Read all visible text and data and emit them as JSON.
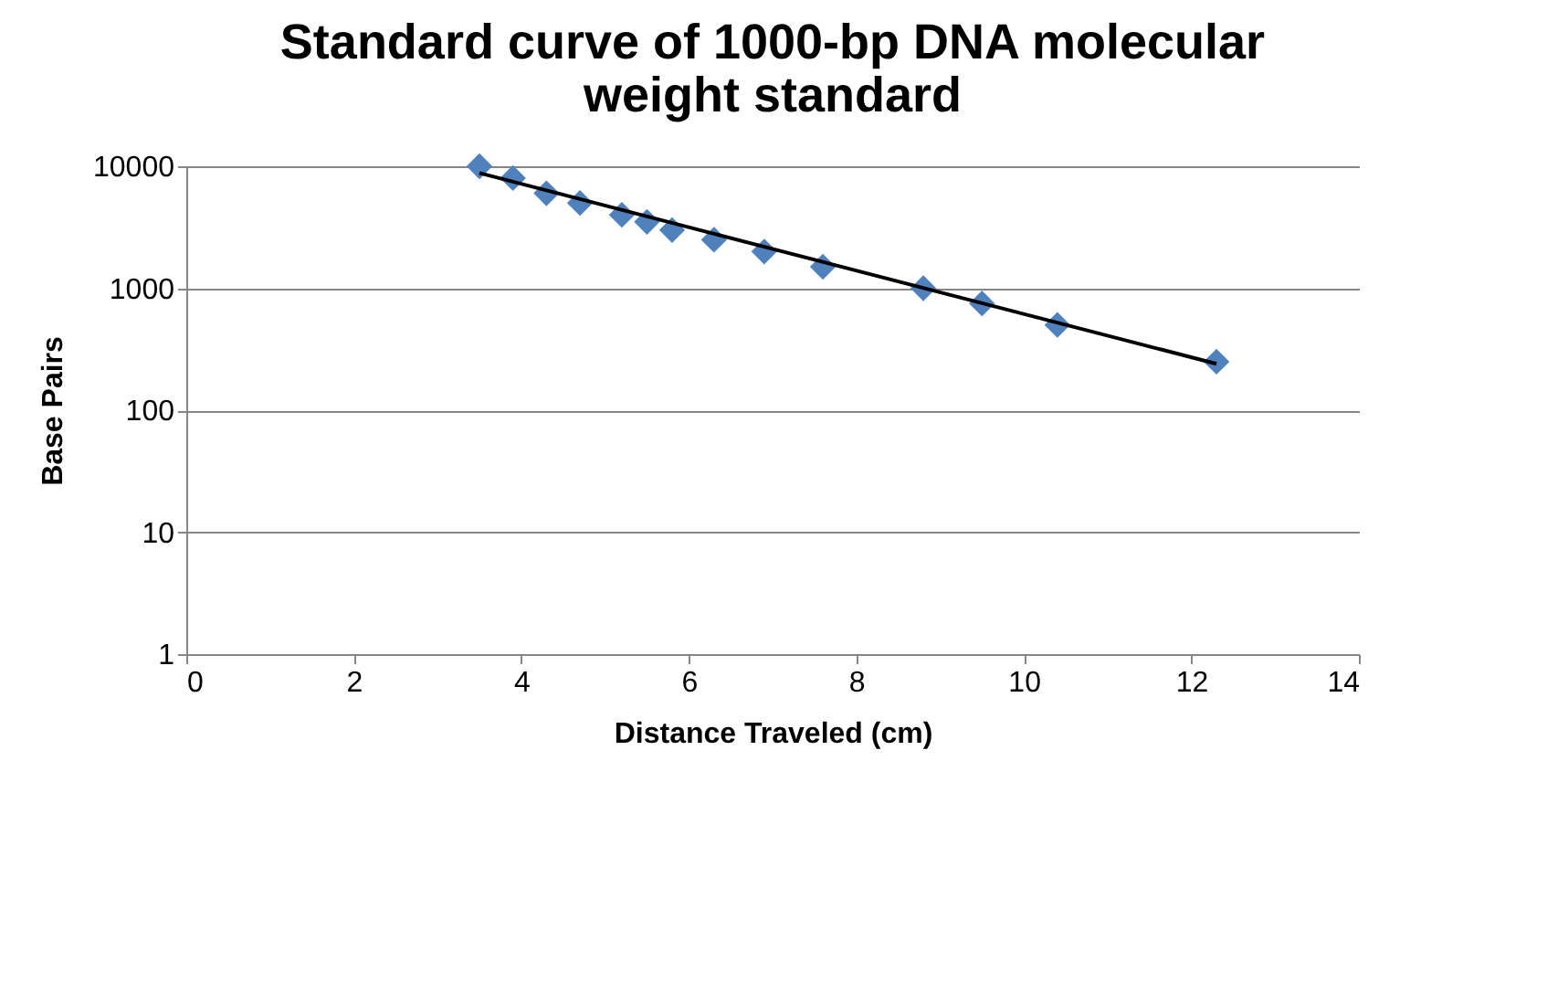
{
  "chart_data": {
    "type": "scatter",
    "title": "Standard curve of 1000-bp DNA molecular weight standard",
    "xlabel": "Distance Traveled (cm)",
    "ylabel": "Base Pairs",
    "series": [
      {
        "color": "#4f81bd",
        "marker": "diamond",
        "x": [
          3.5,
          3.9,
          4.3,
          4.7,
          5.2,
          5.5,
          5.8,
          6.3,
          6.9,
          7.6,
          8.8,
          9.5,
          10.4,
          12.3
        ],
        "values": [
          10000,
          8000,
          6000,
          5000,
          4000,
          3500,
          3000,
          2500,
          2000,
          1500,
          1000,
          750,
          500,
          250
        ]
      },
      {
        "type": "line",
        "color": "#000000",
        "line_style": "solid",
        "x": [
          3.5,
          12.3
        ],
        "values": [
          8800,
          240
        ]
      }
    ],
    "xlim": [
      0,
      14
    ],
    "xticks": [
      0,
      2,
      4,
      6,
      8,
      10,
      12,
      14
    ],
    "ylim": [
      1,
      10000
    ],
    "yticks": [
      1,
      10,
      100,
      1000,
      10000
    ],
    "log": "y",
    "grid": "y"
  }
}
